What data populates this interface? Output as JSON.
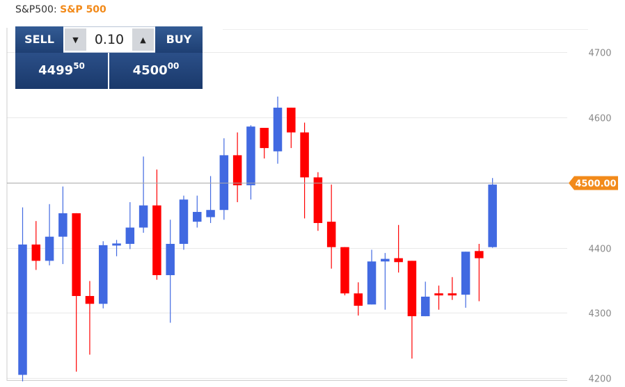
{
  "header": {
    "symbol": "S&P500:",
    "name": "S&P 500"
  },
  "trade_panel": {
    "sell_label": "SELL",
    "buy_label": "BUY",
    "quantity": "0.10",
    "sell_price_main": "4499",
    "sell_price_frac": "50",
    "buy_price_main": "4500",
    "buy_price_frac": "00"
  },
  "colors": {
    "up": "#4169e1",
    "down": "#ff0000",
    "price_tag": "#f28a1a",
    "button": "#1e3f73"
  },
  "chart_data": {
    "type": "candlestick",
    "ylim": [
      4190,
      4745
    ],
    "yticks": [
      4200,
      4300,
      4400,
      4500,
      4600,
      4700
    ],
    "current_price": 4500.0,
    "current_price_label": "4500.00",
    "grid": true,
    "candles": [
      {
        "open": 4205,
        "high": 4462,
        "low": 4195,
        "close": 4405
      },
      {
        "open": 4405,
        "high": 4441,
        "low": 4366,
        "close": 4380
      },
      {
        "open": 4380,
        "high": 4467,
        "low": 4373,
        "close": 4417
      },
      {
        "open": 4417,
        "high": 4494,
        "low": 4375,
        "close": 4453
      },
      {
        "open": 4453,
        "high": 4453,
        "low": 4210,
        "close": 4326
      },
      {
        "open": 4326,
        "high": 4349,
        "low": 4236,
        "close": 4314
      },
      {
        "open": 4314,
        "high": 4410,
        "low": 4307,
        "close": 4404
      },
      {
        "open": 4404,
        "high": 4412,
        "low": 4387,
        "close": 4406
      },
      {
        "open": 4406,
        "high": 4470,
        "low": 4398,
        "close": 4431
      },
      {
        "open": 4431,
        "high": 4540,
        "low": 4423,
        "close": 4465
      },
      {
        "open": 4465,
        "high": 4520,
        "low": 4351,
        "close": 4358
      },
      {
        "open": 4358,
        "high": 4443,
        "low": 4285,
        "close": 4406
      },
      {
        "open": 4406,
        "high": 4480,
        "low": 4397,
        "close": 4474
      },
      {
        "open": 4440,
        "high": 4480,
        "low": 4431,
        "close": 4455
      },
      {
        "open": 4447,
        "high": 4510,
        "low": 4438,
        "close": 4458
      },
      {
        "open": 4458,
        "high": 4568,
        "low": 4443,
        "close": 4542
      },
      {
        "open": 4542,
        "high": 4577,
        "low": 4470,
        "close": 4496
      },
      {
        "open": 4496,
        "high": 4588,
        "low": 4474,
        "close": 4586
      },
      {
        "open": 4584,
        "high": 4584,
        "low": 4537,
        "close": 4553
      },
      {
        "open": 4548,
        "high": 4632,
        "low": 4529,
        "close": 4615
      },
      {
        "open": 4615,
        "high": 4615,
        "low": 4553,
        "close": 4577
      },
      {
        "open": 4577,
        "high": 4592,
        "low": 4445,
        "close": 4508
      },
      {
        "open": 4508,
        "high": 4516,
        "low": 4426,
        "close": 4438
      },
      {
        "open": 4440,
        "high": 4497,
        "low": 4368,
        "close": 4401
      },
      {
        "open": 4401,
        "high": 4401,
        "low": 4327,
        "close": 4330
      },
      {
        "open": 4330,
        "high": 4347,
        "low": 4296,
        "close": 4311
      },
      {
        "open": 4313,
        "high": 4397,
        "low": 4313,
        "close": 4379
      },
      {
        "open": 4379,
        "high": 4392,
        "low": 4305,
        "close": 4383
      },
      {
        "open": 4384,
        "high": 4435,
        "low": 4362,
        "close": 4378
      },
      {
        "open": 4380,
        "high": 4380,
        "low": 4230,
        "close": 4295
      },
      {
        "open": 4295,
        "high": 4348,
        "low": 4295,
        "close": 4325
      },
      {
        "open": 4330,
        "high": 4342,
        "low": 4305,
        "close": 4327
      },
      {
        "open": 4330,
        "high": 4355,
        "low": 4320,
        "close": 4327
      },
      {
        "open": 4328,
        "high": 4394,
        "low": 4308,
        "close": 4394
      },
      {
        "open": 4395,
        "high": 4406,
        "low": 4318,
        "close": 4384
      },
      {
        "open": 4401,
        "high": 4507,
        "low": 4400,
        "close": 4497
      }
    ]
  }
}
